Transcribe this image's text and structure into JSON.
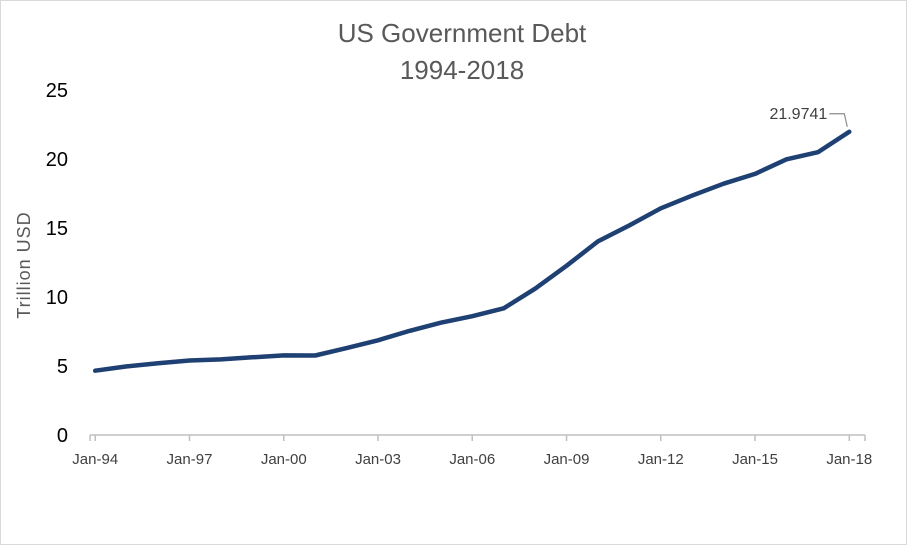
{
  "chart_data": {
    "type": "line",
    "title": [
      "US Government Debt",
      "1994-2018"
    ],
    "ylabel": "Trillion  USD",
    "xlabel": "",
    "ylim": [
      0,
      25
    ],
    "yticks": [
      0,
      5,
      10,
      15,
      20,
      25
    ],
    "xticks": [
      "Jan-94",
      "Jan-97",
      "Jan-00",
      "Jan-03",
      "Jan-06",
      "Jan-09",
      "Jan-12",
      "Jan-15",
      "Jan-18"
    ],
    "grid": false,
    "legend": "none",
    "colors": {
      "line": "#1f4072",
      "axis": "#bfbfbf"
    },
    "series": [
      {
        "x": [
          "1994-01",
          "1995-01",
          "1996-01",
          "1997-01",
          "1998-01",
          "1999-01",
          "2000-01",
          "2001-01",
          "2002-01",
          "2003-01",
          "2004-01",
          "2005-01",
          "2006-01",
          "2007-01",
          "2008-01",
          "2009-01",
          "2010-01",
          "2011-01",
          "2012-01",
          "2013-01",
          "2014-01",
          "2015-01",
          "2016-01",
          "2017-01",
          "2018-01"
        ],
        "values": [
          4.66,
          4.97,
          5.2,
          5.4,
          5.48,
          5.63,
          5.77,
          5.76,
          6.3,
          6.86,
          7.54,
          8.14,
          8.61,
          9.18,
          10.6,
          12.26,
          14.03,
          15.19,
          16.43,
          17.35,
          18.21,
          18.92,
          19.98,
          20.49,
          21.9741
        ]
      }
    ],
    "annotations": [
      {
        "text": "21.9741",
        "point": "2018-01"
      }
    ]
  }
}
